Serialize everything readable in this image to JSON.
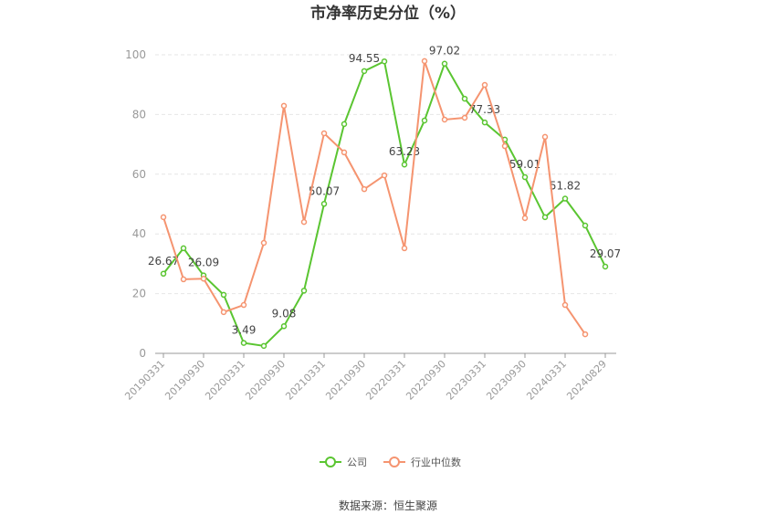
{
  "chart_data": {
    "type": "line",
    "title": "市净率历史分位（%）",
    "source": "数据来源：恒生聚源",
    "categories": [
      "20190331",
      null,
      "20190930",
      null,
      "20200331",
      null,
      "20200930",
      null,
      "20210331",
      null,
      "20210930",
      null,
      "20220331",
      null,
      "20220930",
      null,
      "20230331",
      null,
      "20230930",
      null,
      "20240331",
      null,
      "20240829"
    ],
    "series": [
      {
        "name": "公司",
        "color": "#5ac531",
        "values": [
          26.67,
          35.2,
          26.09,
          19.6,
          3.49,
          2.5,
          9.08,
          21,
          50.07,
          76.8,
          94.55,
          97.8,
          63.23,
          78,
          97.02,
          85.3,
          77.33,
          71.6,
          59.01,
          45.6,
          51.82,
          42.8,
          29.07
        ]
      },
      {
        "name": "行业中位数",
        "color": "#f59470",
        "values": [
          45.6,
          24.8,
          25,
          13.8,
          16.2,
          37,
          82.9,
          44,
          73.7,
          67.3,
          55,
          59.6,
          35.2,
          97.9,
          78.3,
          78.9,
          89.9,
          69.4,
          45.3,
          72.5,
          16.2,
          6.4,
          null
        ]
      }
    ],
    "ylim": [
      0,
      100
    ],
    "yticks": [
      0,
      20,
      40,
      60,
      80,
      100
    ],
    "grid": true
  }
}
